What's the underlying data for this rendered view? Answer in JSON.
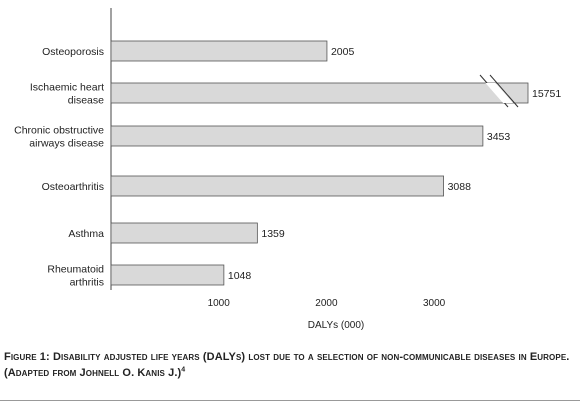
{
  "chart_data": {
    "type": "bar",
    "orientation": "horizontal",
    "categories": [
      [
        "Osteoporosis"
      ],
      [
        "Ischaemic heart",
        "disease"
      ],
      [
        "Chronic obstructive",
        "airways disease"
      ],
      [
        "Osteoarthritis"
      ],
      [
        "Asthma"
      ],
      [
        "Rheumatoid",
        "arthritis"
      ]
    ],
    "values": [
      2005,
      15751,
      3453,
      3088,
      1359,
      1048
    ],
    "value_labels": [
      "2005",
      "15751",
      "3453",
      "3088",
      "1359",
      "1048"
    ],
    "broken_bar": "Ischaemic heart disease",
    "xlabel": "DALYs (000)",
    "xticks": [
      "1000",
      "2000",
      "3000"
    ],
    "xlim": [
      0,
      4000
    ],
    "bar_color": "#d9d9d9",
    "bar_outline": "#555555",
    "grid": false
  },
  "caption": {
    "text": "Figure 1: Disability adjusted life years (DALYs) lost due to a selection of non-communicable diseases in Europe. (Adapted from Johnell O. Kanis J.)",
    "ref": "4"
  }
}
